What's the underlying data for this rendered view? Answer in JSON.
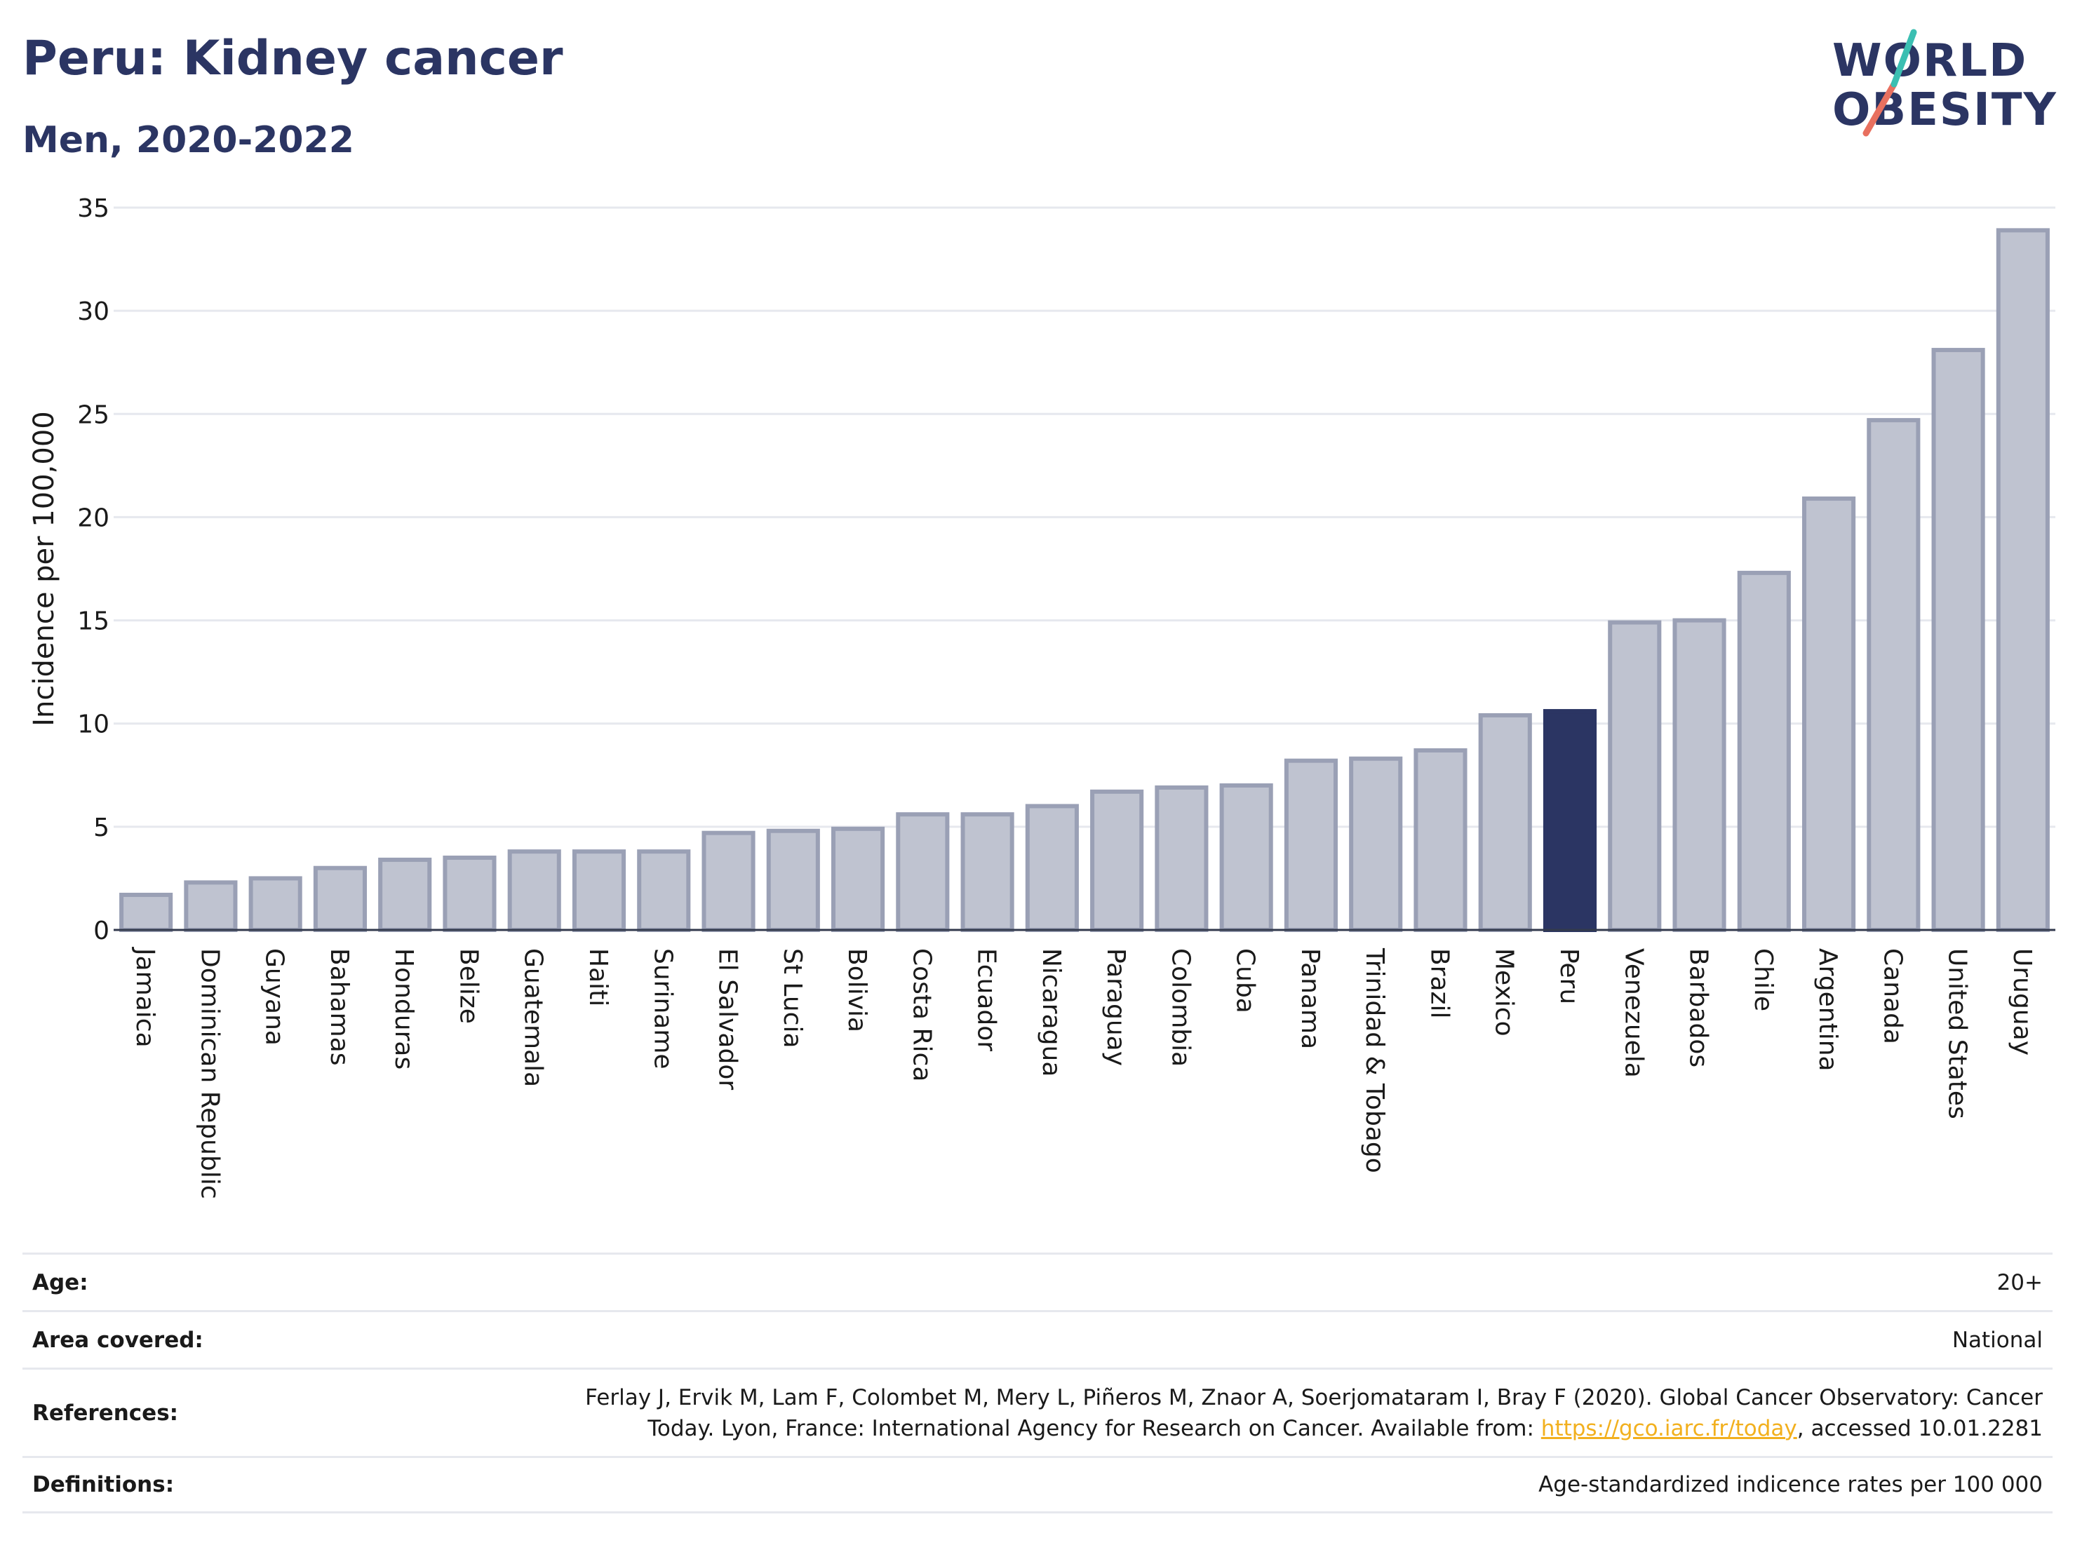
{
  "header": {
    "title": "Peru: Kidney cancer",
    "subtitle": "Men, 2020-2022"
  },
  "logo": {
    "line1": "WORLD",
    "line2": "OBESITY"
  },
  "chart_data": {
    "type": "bar",
    "ylabel": "Incidence per 100,000",
    "xlabel": "",
    "ylim": [
      0,
      35
    ],
    "yticks": [
      0,
      5,
      10,
      15,
      20,
      25,
      30,
      35
    ],
    "grid": true,
    "highlight": "Peru",
    "colors": {
      "bar": "#bfc3d0",
      "bar_border": "#9aa0b5",
      "highlight": "#2b3563"
    },
    "categories": [
      "Jamaica",
      "Dominican Republic",
      "Guyana",
      "Bahamas",
      "Honduras",
      "Belize",
      "Guatemala",
      "Haiti",
      "Suriname",
      "El Salvador",
      "St Lucia",
      "Bolivia",
      "Costa Rica",
      "Ecuador",
      "Nicaragua",
      "Paraguay",
      "Colombia",
      "Cuba",
      "Panama",
      "Trinidad & Tobago",
      "Brazil",
      "Mexico",
      "Peru",
      "Venezuela",
      "Barbados",
      "Chile",
      "Argentina",
      "Canada",
      "United States",
      "Uruguay"
    ],
    "values": [
      1.7,
      2.3,
      2.5,
      3.0,
      3.4,
      3.5,
      3.8,
      3.8,
      3.8,
      4.7,
      4.8,
      4.9,
      5.6,
      5.6,
      6.0,
      6.7,
      6.9,
      7.0,
      8.2,
      8.3,
      8.7,
      10.4,
      10.6,
      14.9,
      15.0,
      17.3,
      20.9,
      24.7,
      28.1,
      33.9
    ]
  },
  "meta": {
    "age_label": "Age:",
    "age_value": "20+",
    "area_label": "Area covered:",
    "area_value": "National",
    "references_label": "References:",
    "references_line1": "Ferlay J, Ervik M, Lam F, Colombet M, Mery L, Piñeros M, Znaor A, Soerjomataram I, Bray F (2020). Global Cancer Observatory: Cancer",
    "references_line2_pre": "Today. Lyon, France: International Agency for Research on Cancer. Available from: ",
    "references_link": "https://gco.iarc.fr/today",
    "references_line2_post": ", accessed 10.01.2281",
    "definitions_label": "Definitions:",
    "definitions_value": "Age-standardized indicence rates per 100 000"
  }
}
